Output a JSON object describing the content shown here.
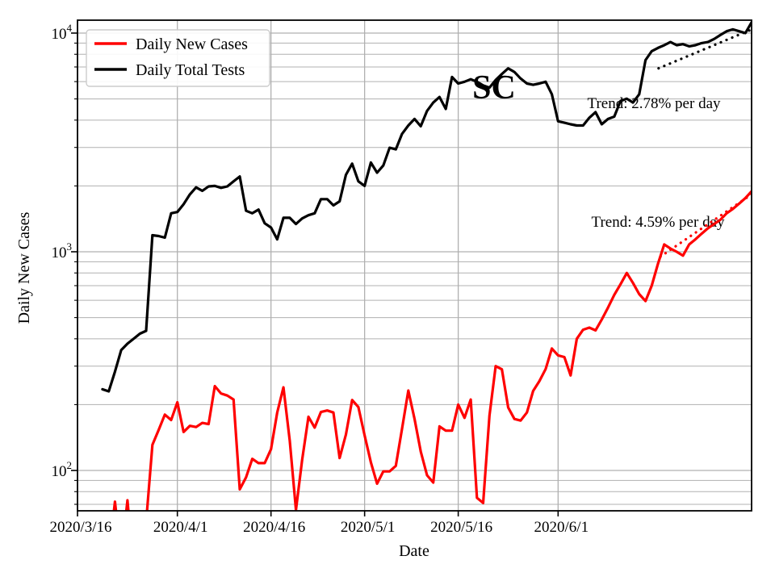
{
  "figure": {
    "watermark": "SC",
    "background_color": "#ffffff"
  },
  "chart_data": {
    "type": "line",
    "title": "",
    "xlabel": "Date",
    "ylabel": "Daily New Cases",
    "y_scale": "log",
    "grid": true,
    "grid_color": "#b0b0b0",
    "y_ticks": [
      100,
      1000,
      10000
    ],
    "y_range_approx": [
      65,
      11500
    ],
    "x_range_days": [
      0,
      108
    ],
    "x_tick_days": [
      0,
      16,
      31,
      46,
      61,
      77
    ],
    "x_tick_labels": [
      "2020/3/16",
      "2020/4/1",
      "2020/4/16",
      "2020/5/1",
      "2020/5/16",
      "2020/6/1"
    ],
    "legend": {
      "position": "upper-left",
      "entries": [
        {
          "label": "Daily New Cases",
          "color": "#ff0000"
        },
        {
          "label": "Daily Total Tests",
          "color": "#000000"
        }
      ]
    },
    "annotations": [
      {
        "text": "Trend: 2.78% per day",
        "series": "Daily Total Tests",
        "anchor_day": 92.4,
        "anchor_value": 4500
      },
      {
        "text": "Trend: 4.59% per day",
        "series": "Daily New Cases",
        "anchor_day": 93.0,
        "anchor_value": 1380
      }
    ],
    "series": [
      {
        "name": "Daily Total Tests",
        "color": "#000000",
        "start_day": 4,
        "values": [
          235,
          230,
          283,
          355,
          380,
          400,
          422,
          435,
          1190,
          1180,
          1160,
          1500,
          1520,
          1650,
          1830,
          1970,
          1900,
          1990,
          2000,
          1960,
          1990,
          2100,
          2210,
          1540,
          1500,
          1560,
          1350,
          1290,
          1140,
          1430,
          1430,
          1340,
          1420,
          1470,
          1500,
          1740,
          1740,
          1630,
          1700,
          2250,
          2530,
          2100,
          2000,
          2560,
          2300,
          2480,
          2990,
          2940,
          3460,
          3780,
          4050,
          3750,
          4410,
          4810,
          5100,
          4500,
          6300,
          5880,
          5990,
          6150,
          5990,
          5760,
          5630,
          6100,
          6500,
          6900,
          6640,
          6200,
          5880,
          5800,
          5880,
          5990,
          5250,
          3950,
          3890,
          3830,
          3780,
          3780,
          4100,
          4350,
          3830,
          4050,
          4150,
          4890,
          5010,
          4810,
          5250,
          7520,
          8270,
          8550,
          8800,
          9100,
          8800,
          8900,
          8700,
          8800,
          9000,
          9100,
          9400,
          9800,
          10200,
          10400,
          10200,
          10000,
          11200
        ]
      },
      {
        "name": "Daily New Cases",
        "color": "#ff0000",
        "start_day": 5,
        "values": [
          40,
          72,
          40,
          73,
          34,
          30,
          58,
          131,
          153,
          180,
          170,
          205,
          150,
          160,
          158,
          165,
          163,
          243,
          225,
          220,
          211,
          82,
          93,
          113,
          108,
          108,
          125,
          184,
          240,
          137,
          66,
          112,
          176,
          157,
          185,
          188,
          184,
          114,
          146,
          210,
          195,
          145,
          109,
          87,
          99,
          99,
          105,
          155,
          232,
          172,
          122,
          95,
          88,
          159,
          152,
          152,
          200,
          174,
          211,
          75,
          71,
          178,
          300,
          290,
          194,
          172,
          169,
          184,
          231,
          256,
          291,
          361,
          336,
          330,
          272,
          400,
          440,
          450,
          437,
          490,
          556,
          635,
          710,
          800,
          720,
          640,
          595,
          700,
          880,
          1080,
          1035,
          1000,
          960,
          1080,
          1140,
          1210,
          1280,
          1340,
          1400,
          1500,
          1570,
          1660,
          1760,
          1890
        ]
      }
    ],
    "trend_lines": [
      {
        "series": "Daily Total Tests",
        "color": "#000000",
        "rate_percent_per_day": 2.78,
        "start_day": 93.1,
        "end_day": 108.4,
        "start_value": 6900,
        "end_value": 10500
      },
      {
        "series": "Daily New Cases",
        "color": "#ff0000",
        "rate_percent_per_day": 4.59,
        "start_day": 93.4,
        "end_day": 108.3,
        "start_value": 950,
        "end_value": 1855
      }
    ]
  }
}
